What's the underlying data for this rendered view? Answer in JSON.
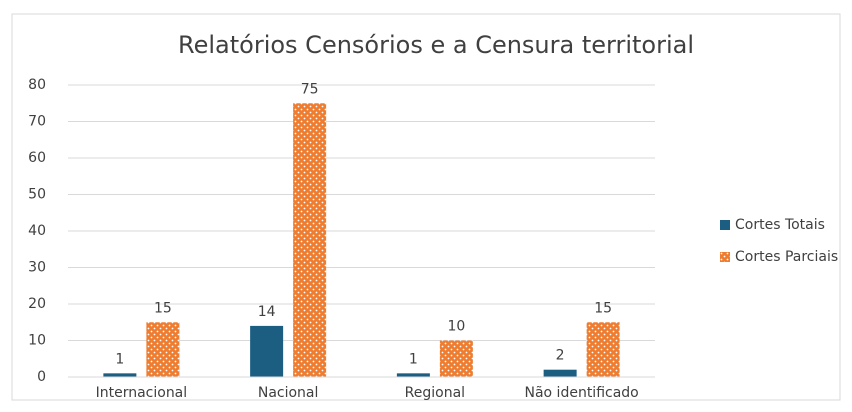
{
  "chart_data": {
    "type": "bar",
    "title": "Relatórios Censórios e a Censura territorial",
    "categories": [
      "Internacional",
      "Nacional",
      "Regional",
      "Não identificado"
    ],
    "series": [
      {
        "name": "Cortes Totais",
        "color": "#1b5e82",
        "values": [
          1,
          14,
          1,
          2
        ]
      },
      {
        "name": "Cortes Parciais",
        "color": "#ed7d31",
        "pattern": "dots",
        "values": [
          15,
          75,
          10,
          15
        ]
      }
    ],
    "ylim": [
      0,
      80
    ],
    "yticks": [
      0,
      10,
      20,
      30,
      40,
      50,
      60,
      70,
      80
    ],
    "grid": true,
    "legend": "right"
  }
}
